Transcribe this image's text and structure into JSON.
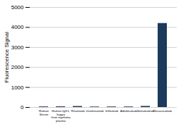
{
  "chart_data": {
    "type": "bar",
    "categories": [
      "Human\nSerum",
      "Human IgG1,\nkappa\nfrom myeloma\nplasma",
      "Rituximab",
      "Ustekinumab",
      "Infliximab",
      "Adalimumab",
      "Ibritumomab",
      "Bevacizumab"
    ],
    "values": [
      30,
      35,
      50,
      25,
      28,
      28,
      55,
      4200
    ],
    "color": "#1b3a5c",
    "ylabel": "Fluorescence Signal",
    "ylim": [
      0,
      5000
    ],
    "yticks": [
      0,
      1000,
      2000,
      3000,
      4000,
      5000
    ],
    "grid": true
  }
}
